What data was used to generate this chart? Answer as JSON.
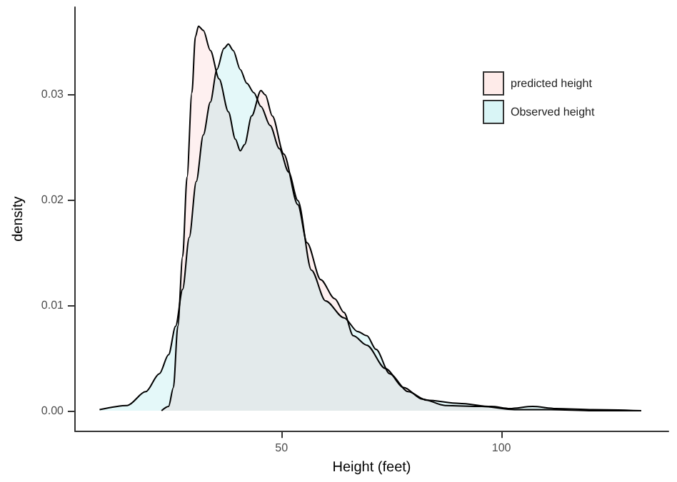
{
  "chart_data": {
    "type": "area",
    "xlabel": "Height (feet)",
    "ylabel": "density",
    "xlim": [
      3,
      138
    ],
    "ylim": [
      -0.0019,
      0.0382
    ],
    "xticks": [
      50,
      100
    ],
    "yticks": [
      {
        "value": 0,
        "label": "0.00"
      },
      {
        "value": 0.01,
        "label": "0.01"
      },
      {
        "value": 0.02,
        "label": "0.02"
      },
      {
        "value": 0.03,
        "label": "0.03"
      }
    ],
    "grid": false,
    "legend": "top right",
    "marker": "none",
    "line_style": "solid",
    "series": [
      {
        "name": "predicted height",
        "color": "#f8766d",
        "x": [
          22.7,
          24.3,
          25.4,
          26.4,
          27.5,
          28.5,
          29.6,
          30.4,
          31.1,
          32.2,
          33.8,
          35.8,
          37.9,
          39.5,
          40.6,
          41.6,
          43.2,
          45.3,
          46.3,
          47.9,
          50.5,
          53.7,
          55.8,
          58.9,
          62.1,
          64.2,
          66.3,
          69.4,
          73.6,
          77.8,
          82,
          87.2,
          95.6,
          103,
          111.3,
          120.8,
          131.8
        ],
        "values": [
          0,
          0.0004,
          0.0022,
          0.008,
          0.0146,
          0.0221,
          0.0301,
          0.0354,
          0.0364,
          0.036,
          0.0341,
          0.0314,
          0.0283,
          0.0257,
          0.0246,
          0.0252,
          0.0279,
          0.0303,
          0.0299,
          0.0279,
          0.0243,
          0.0195,
          0.0159,
          0.0124,
          0.0106,
          0.0093,
          0.0071,
          0.0062,
          0.004,
          0.0022,
          0.0011,
          0.0005,
          0.0004,
          0.0001,
          0.0001,
          0,
          0
        ]
      },
      {
        "name": "Observed height",
        "color": "#00bfc4",
        "x": [
          8.6,
          14.9,
          19.1,
          22.2,
          24.3,
          25.9,
          27.5,
          29,
          30.6,
          32.2,
          33.8,
          35.3,
          36.9,
          37.9,
          39,
          40.6,
          42.1,
          43.7,
          45.3,
          47.4,
          49.5,
          51.6,
          53.7,
          56.8,
          60,
          64.2,
          67.3,
          69.4,
          71.5,
          74.6,
          78.8,
          83,
          90.4,
          97.7,
          101.9,
          107.1,
          112.4,
          120.8,
          131.8
        ],
        "values": [
          0.0001,
          0.0005,
          0.0018,
          0.0035,
          0.0053,
          0.008,
          0.0115,
          0.0164,
          0.0217,
          0.0261,
          0.0292,
          0.0323,
          0.0343,
          0.0347,
          0.0341,
          0.0323,
          0.031,
          0.0301,
          0.0288,
          0.027,
          0.0248,
          0.0226,
          0.0199,
          0.0133,
          0.0104,
          0.0088,
          0.0075,
          0.0071,
          0.0058,
          0.0035,
          0.0018,
          0.001,
          0.0007,
          0.0004,
          0.0002,
          0.0004,
          0.0002,
          0.0001,
          0
        ]
      }
    ]
  }
}
